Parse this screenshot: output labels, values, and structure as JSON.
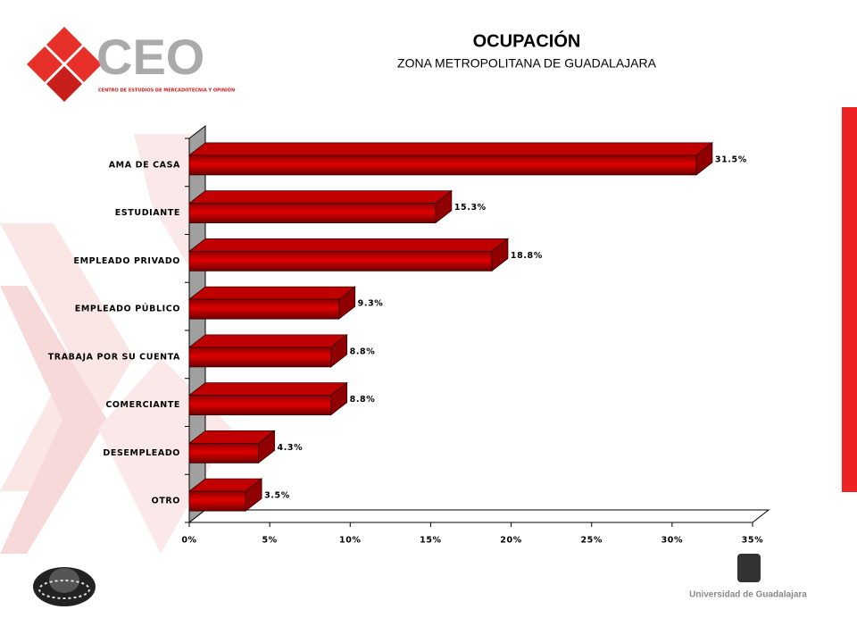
{
  "branding": {
    "logo": "CEO",
    "logo_caption": "CENTRO DE ESTUDIOS DE MERCADOTECNIA Y OPINIÓN",
    "university": "Universidad de Guadalajara"
  },
  "chart_data": {
    "type": "bar3d_horizontal",
    "title": "OCUPACIÓN",
    "subtitle": "ZONA METROPOLITANA DE GUADALAJARA",
    "categories": [
      "AMA DE CASA",
      "ESTUDIANTE",
      "EMPLEADO PRIVADO",
      "EMPLEADO PÚBLICO",
      "TRABAJA POR SU CUENTA",
      "COMERCIANTE",
      "DESEMPLEADO",
      "OTRO"
    ],
    "values": [
      31.5,
      15.3,
      18.8,
      9.3,
      8.8,
      8.8,
      4.3,
      3.5
    ],
    "value_labels": [
      "31.5%",
      "15.3%",
      "18.8%",
      "9.3%",
      "8.8%",
      "8.8%",
      "4.3%",
      "3.5%"
    ],
    "color": "#e00000",
    "xlim": [
      0,
      35
    ],
    "xticks": [
      {
        "value": 0,
        "label": "0%"
      },
      {
        "value": 5,
        "label": "5%"
      },
      {
        "value": 10,
        "label": "10%"
      },
      {
        "value": 15,
        "label": "15%"
      },
      {
        "value": 20,
        "label": "20%"
      },
      {
        "value": 25,
        "label": "25%"
      },
      {
        "value": 30,
        "label": "30%"
      },
      {
        "value": 35,
        "label": "35%"
      }
    ]
  }
}
